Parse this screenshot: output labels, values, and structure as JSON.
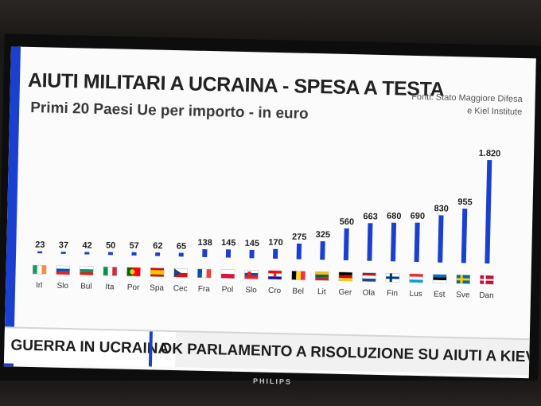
{
  "title": "AIUTI MILITARI A UCRAINA - SPESA A TESTA",
  "subtitle": "Primi 20 Paesi Ue per importo - in euro",
  "source": [
    "Fonti: Stato Maggiore Difesa",
    "e Kiel Institute"
  ],
  "ticker": {
    "tag": "GUERRA IN UCRAINA",
    "headline": "OK PARLAMENTO A RISOLUZIONE SU AIUTI A KIEV"
  },
  "brand": "PHILIPS",
  "colors": {
    "bar": "#1a3fd1",
    "accent": "#1a3fd1",
    "value_text": "#1f1f1f"
  },
  "chart_data": {
    "type": "bar",
    "categories": [
      "Irl",
      "Slo",
      "Bul",
      "Ita",
      "Por",
      "Spa",
      "Cec",
      "Fra",
      "Pol",
      "Slo",
      "Cro",
      "Bel",
      "Lit",
      "Ger",
      "Ola",
      "Fin",
      "Lus",
      "Est",
      "Sve",
      "Dan"
    ],
    "values": [
      23,
      37,
      42,
      50,
      57,
      62,
      65,
      138,
      145,
      145,
      170,
      275,
      325,
      560,
      663,
      680,
      690,
      830,
      955,
      1820
    ],
    "value_labels": [
      "23",
      "37",
      "42",
      "50",
      "57",
      "62",
      "65",
      "138",
      "145",
      "145",
      "170",
      "275",
      "325",
      "560",
      "663",
      "680",
      "690",
      "830",
      "955",
      "1.820"
    ],
    "flags": [
      "ireland-flag-icon",
      "slovenia-flag-icon",
      "bulgaria-flag-icon",
      "italy-flag-icon",
      "portugal-flag-icon",
      "spain-flag-icon",
      "czechia-flag-icon",
      "france-flag-icon",
      "poland-flag-icon",
      "slovakia-flag-icon",
      "croatia-flag-icon",
      "belgium-flag-icon",
      "lithuania-flag-icon",
      "germany-flag-icon",
      "netherlands-flag-icon",
      "finland-flag-icon",
      "luxembourg-flag-icon",
      "estonia-flag-icon",
      "sweden-flag-icon",
      "denmark-flag-icon"
    ],
    "ylim": [
      0,
      1820
    ],
    "grid": false,
    "legend": "none"
  }
}
